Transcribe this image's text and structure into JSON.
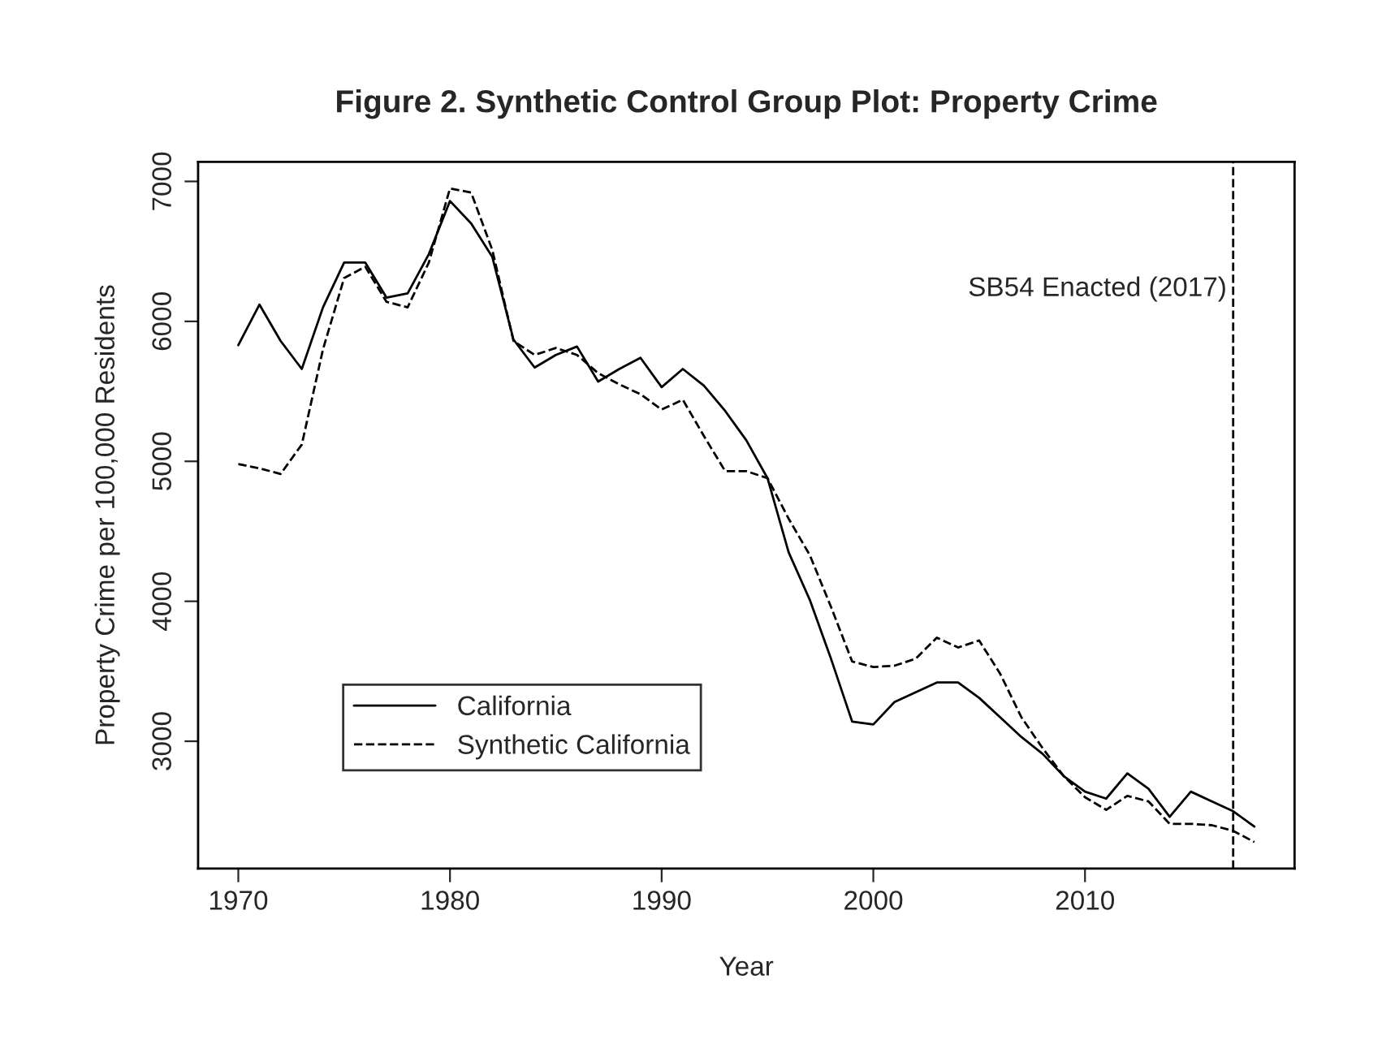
{
  "chart_data": {
    "type": "line",
    "title": "Figure 2. Synthetic Control Group Plot: Property Crime",
    "xlabel": "Year",
    "ylabel": "Property Crime per 100,000 Residents",
    "x": [
      1970,
      1971,
      1972,
      1973,
      1974,
      1975,
      1976,
      1977,
      1978,
      1979,
      1980,
      1981,
      1982,
      1983,
      1984,
      1985,
      1986,
      1987,
      1988,
      1989,
      1990,
      1991,
      1992,
      1993,
      1994,
      1995,
      1996,
      1997,
      1998,
      1999,
      2000,
      2001,
      2002,
      2003,
      2004,
      2005,
      2006,
      2007,
      2008,
      2009,
      2010,
      2011,
      2012,
      2013,
      2014,
      2015,
      2016,
      2017,
      2018
    ],
    "series": [
      {
        "name": "California",
        "color": "#000000",
        "line_style": "solid",
        "values": [
          5830,
          6120,
          5860,
          5660,
          6100,
          6420,
          6420,
          6170,
          6200,
          6480,
          6860,
          6700,
          6460,
          5870,
          5670,
          5760,
          5820,
          5570,
          5660,
          5740,
          5530,
          5660,
          5540,
          5360,
          5150,
          4880,
          4350,
          4010,
          3590,
          3140,
          3120,
          3280,
          3350,
          3420,
          3420,
          3310,
          3170,
          3030,
          2910,
          2750,
          2640,
          2590,
          2770,
          2660,
          2460,
          2640,
          2570,
          2500,
          2390
        ]
      },
      {
        "name": "Synthetic California",
        "color": "#000000",
        "line_style": "dashed",
        "values": [
          4980,
          4950,
          4910,
          5120,
          5800,
          6310,
          6390,
          6140,
          6100,
          6420,
          6950,
          6920,
          6510,
          5860,
          5760,
          5810,
          5760,
          5630,
          5550,
          5480,
          5370,
          5440,
          5180,
          4930,
          4930,
          4880,
          4590,
          4330,
          3960,
          3570,
          3530,
          3540,
          3590,
          3740,
          3670,
          3720,
          3480,
          3170,
          2950,
          2750,
          2600,
          2510,
          2610,
          2570,
          2410,
          2410,
          2400,
          2360,
          2280
        ]
      }
    ],
    "xlim": [
      1968.1,
      2019.9
    ],
    "ylim": [
      2090,
      7140
    ],
    "xticks": [
      1970,
      1980,
      1990,
      2000,
      2010
    ],
    "yticks": [
      3000,
      4000,
      5000,
      6000,
      7000
    ],
    "ref_lines": [
      {
        "axis": "x",
        "value": 2017,
        "label": "SB54 Enacted (2017)",
        "line_style": "dashed",
        "color": "#000000"
      }
    ],
    "legend": "bottom left",
    "grid": false
  }
}
